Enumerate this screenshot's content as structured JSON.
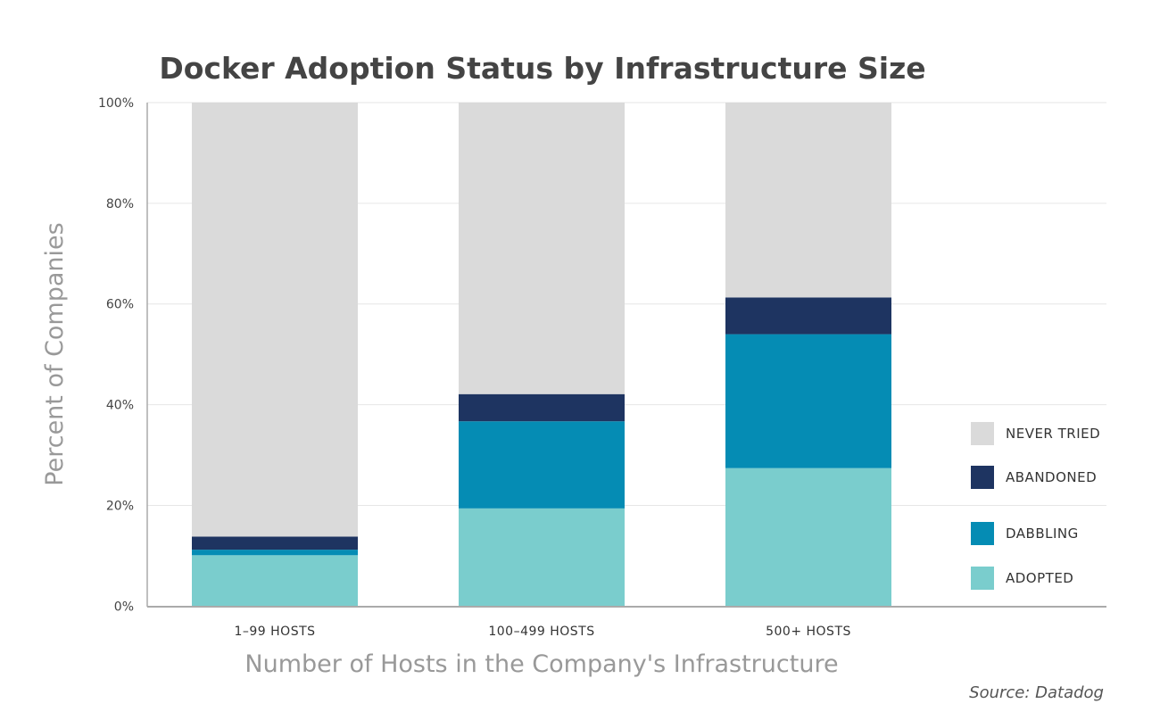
{
  "chart_data": {
    "type": "bar",
    "stacked": true,
    "title": "Docker Adoption Status by Infrastructure Size",
    "xlabel": "Number of Hosts in the Company's Infrastructure",
    "ylabel": "Percent of Companies",
    "ylim": [
      0,
      100
    ],
    "yticks": [
      "0%",
      "20%",
      "40%",
      "60%",
      "80%",
      "100%"
    ],
    "ytick_values": [
      0,
      20,
      40,
      60,
      80,
      100
    ],
    "grid": true,
    "legend_position": "right",
    "categories": [
      "1-99 HOSTS",
      "100-499 HOSTS",
      "500+ HOSTS"
    ],
    "series": [
      {
        "name": "ADOPTED",
        "color": "#7acdcd",
        "values": [
          10.1,
          19.4,
          27.4
        ]
      },
      {
        "name": "DABBLING",
        "color": "#058cb4",
        "values": [
          1.1,
          17.3,
          26.6
        ]
      },
      {
        "name": "ABANDONED",
        "color": "#1e3461",
        "values": [
          2.6,
          5.4,
          7.3
        ]
      },
      {
        "name": "NEVER TRIED",
        "color": "#dadada",
        "values": [
          86.2,
          57.9,
          38.7
        ]
      }
    ],
    "legend_order": [
      "NEVER TRIED",
      "ABANDONED",
      "DABBLING",
      "ADOPTED"
    ],
    "source": "Source: Datadog"
  }
}
